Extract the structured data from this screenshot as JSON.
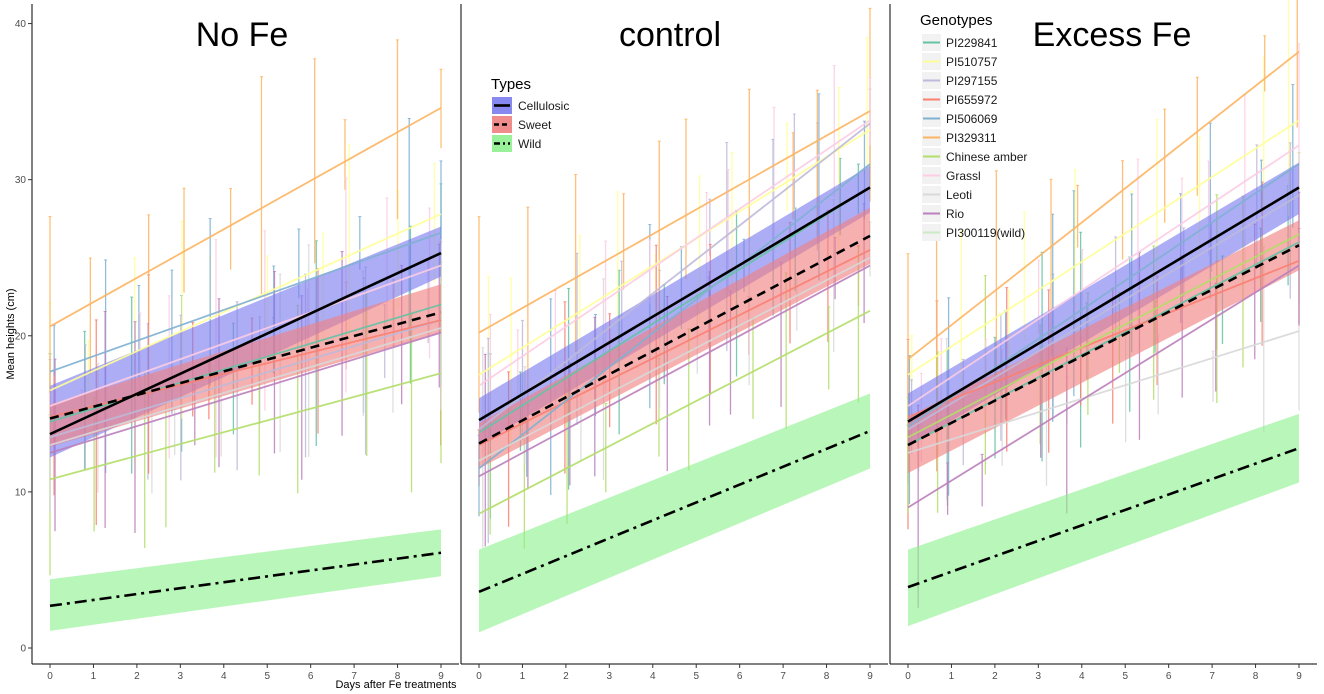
{
  "chart_data": [
    {
      "type": "line",
      "title": "No Fe",
      "xlabel": "Days after Fe treatments",
      "ylabel": "Mean heights (cm)",
      "x_ticks": [
        0,
        1,
        2,
        3,
        4,
        5,
        6,
        7,
        8,
        9
      ],
      "y_ticks": [
        0,
        10,
        20,
        30,
        40
      ],
      "xlim": [
        -0.4,
        9.4
      ],
      "ylim": [
        -1,
        43
      ],
      "type_series": [
        {
          "name": "Cellulosic",
          "start": 13.7,
          "end": 25.3,
          "band_start": [
            12.2,
            16.8
          ],
          "band_end": [
            23.8,
            27.0
          ]
        },
        {
          "name": "Sweet",
          "start": 14.7,
          "end": 21.5,
          "band_start": [
            12.9,
            15.6
          ],
          "band_end": [
            20.2,
            23.3
          ]
        },
        {
          "name": "Wild",
          "start": 2.7,
          "end": 6.1,
          "band_start": [
            1.1,
            4.4
          ],
          "band_end": [
            4.6,
            7.6
          ]
        }
      ],
      "genotype_series": [
        {
          "name": "PI229841",
          "start": 14.5,
          "end": 22.0
        },
        {
          "name": "PI510757",
          "start": 16.5,
          "end": 27.8
        },
        {
          "name": "PI297155",
          "start": 13.5,
          "end": 21.0
        },
        {
          "name": "PI655972",
          "start": 14.8,
          "end": 21.0
        },
        {
          "name": "PI506069",
          "start": 17.7,
          "end": 26.6
        },
        {
          "name": "PI329311",
          "start": 20.6,
          "end": 34.6
        },
        {
          "name": "Chinese amber",
          "start": 10.8,
          "end": 17.6
        },
        {
          "name": "Grassl",
          "start": 15.5,
          "end": 24.5
        },
        {
          "name": "Leoti",
          "start": 13.0,
          "end": 20.5
        },
        {
          "name": "Rio",
          "start": 12.5,
          "end": 20.2
        },
        {
          "name": "PI300119(wild)",
          "start": 2.7,
          "end": 6.1
        }
      ]
    },
    {
      "type": "line",
      "title": "control",
      "xlabel": "Days after Fe treatments",
      "ylabel": "",
      "x_ticks": [
        0,
        1,
        2,
        3,
        4,
        5,
        6,
        7,
        8,
        9
      ],
      "xlim": [
        -0.4,
        9.4
      ],
      "ylim": [
        -1,
        43
      ],
      "type_series": [
        {
          "name": "Cellulosic",
          "start": 14.6,
          "end": 29.5,
          "band_start": [
            13.0,
            16.0
          ],
          "band_end": [
            27.9,
            30.9
          ]
        },
        {
          "name": "Sweet",
          "start": 13.1,
          "end": 26.4,
          "band_start": [
            11.5,
            14.4
          ],
          "band_end": [
            24.6,
            28.2
          ]
        },
        {
          "name": "Wild",
          "start": 3.6,
          "end": 13.9,
          "band_start": [
            1.0,
            6.3
          ],
          "band_end": [
            11.5,
            16.3
          ]
        }
      ],
      "genotype_series": [
        {
          "name": "PI229841",
          "start": 13.8,
          "end": 29.5
        },
        {
          "name": "PI510757",
          "start": 17.5,
          "end": 33.2
        },
        {
          "name": "PI297155",
          "start": 14.0,
          "end": 33.6
        },
        {
          "name": "PI655972",
          "start": 13.0,
          "end": 25.5
        },
        {
          "name": "PI506069",
          "start": 11.5,
          "end": 31.0
        },
        {
          "name": "PI329311",
          "start": 20.2,
          "end": 34.4
        },
        {
          "name": "Chinese amber",
          "start": 8.6,
          "end": 21.6
        },
        {
          "name": "Grassl",
          "start": 16.8,
          "end": 33.8
        },
        {
          "name": "Leoti",
          "start": 12.0,
          "end": 25.0
        },
        {
          "name": "Rio",
          "start": 11.0,
          "end": 24.5
        },
        {
          "name": "PI300119(wild)",
          "start": 3.6,
          "end": 13.9
        }
      ]
    },
    {
      "type": "line",
      "title": "Excess Fe",
      "xlabel": "Days after Fe treatments",
      "ylabel": "",
      "x_ticks": [
        0,
        1,
        2,
        3,
        4,
        5,
        6,
        7,
        8,
        9
      ],
      "xlim": [
        -0.4,
        9.4
      ],
      "ylim": [
        -1,
        43
      ],
      "type_series": [
        {
          "name": "Cellulosic",
          "start": 14.5,
          "end": 29.5,
          "band_start": [
            12.9,
            16.3
          ],
          "band_end": [
            27.8,
            31.1
          ]
        },
        {
          "name": "Sweet",
          "start": 13.0,
          "end": 25.8,
          "band_start": [
            11.2,
            14.8
          ],
          "band_end": [
            24.2,
            27.4
          ]
        },
        {
          "name": "Wild",
          "start": 3.9,
          "end": 12.8,
          "band_start": [
            1.4,
            6.3
          ],
          "band_end": [
            10.6,
            15.0
          ]
        }
      ],
      "genotype_series": [
        {
          "name": "PI229841",
          "start": 13.0,
          "end": 26.0
        },
        {
          "name": "PI510757",
          "start": 17.5,
          "end": 33.8
        },
        {
          "name": "PI297155",
          "start": 14.0,
          "end": 29.0
        },
        {
          "name": "PI655972",
          "start": 14.8,
          "end": 24.8
        },
        {
          "name": "PI506069",
          "start": 14.2,
          "end": 31.0
        },
        {
          "name": "PI329311",
          "start": 18.5,
          "end": 38.2
        },
        {
          "name": "Chinese amber",
          "start": 13.5,
          "end": 26.5
        },
        {
          "name": "Grassl",
          "start": 15.5,
          "end": 32.2
        },
        {
          "name": "Leoti",
          "start": 12.5,
          "end": 20.3
        },
        {
          "name": "Rio",
          "start": 9.0,
          "end": 24.5
        },
        {
          "name": "PI300119(wild)",
          "start": 3.9,
          "end": 12.8
        }
      ]
    }
  ],
  "legends": {
    "types": {
      "title": "Types",
      "items": [
        {
          "label": "Cellulosic",
          "fill": "#7b7bf0",
          "line": "solid"
        },
        {
          "label": "Sweet",
          "fill": "#f08080",
          "line": "dashed"
        },
        {
          "label": "Wild",
          "fill": "#8ef08e",
          "line": "dotdash"
        }
      ],
      "placement": "inside panel 2, upper-left"
    },
    "genotypes": {
      "title": "Genotypes",
      "items": [
        {
          "label": "PI229841",
          "color": "#66c2a5"
        },
        {
          "label": "PI510757",
          "color": "#ffff99"
        },
        {
          "label": "PI297155",
          "color": "#bebada"
        },
        {
          "label": "PI655972",
          "color": "#fb8072"
        },
        {
          "label": "PI506069",
          "color": "#80b1d3"
        },
        {
          "label": "PI329311",
          "color": "#fdb462"
        },
        {
          "label": "Chinese amber",
          "color": "#b3de69"
        },
        {
          "label": "Grassl",
          "color": "#fccde5"
        },
        {
          "label": "Leoti",
          "color": "#d9d9d9"
        },
        {
          "label": "Rio",
          "color": "#bc80bd"
        },
        {
          "label": "PI300119(wild)",
          "color": "#ccebc5"
        }
      ],
      "placement": "inside panel 3, upper-left"
    }
  },
  "colors": {
    "cellulosic_band": "#7b7bf0",
    "sweet_band": "#f08080",
    "wild_band": "#8ef08e",
    "fit_line": "#000000"
  },
  "grid": false
}
